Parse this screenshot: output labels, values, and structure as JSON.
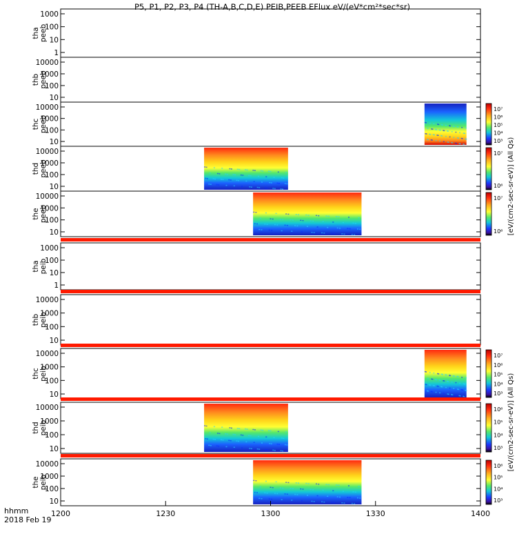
{
  "figure": {
    "title": "P5, P1, P2, P3, P4 (TH-A,B,C,D,E) PEIB,PEEB EFlux eV/(eV*cm²*sec*sr)",
    "time_label": "hhmm",
    "date_label": "2018 Feb 19",
    "x_ticks": [
      "1200",
      "1230",
      "1300",
      "1330",
      "1400"
    ],
    "colorbar_unit_electron": "[eV/(cm2-sec-sr-eV)] (All Qs)",
    "colorbar_unit_ion": "[eV/(cm2-sec-sr-eV)] (All Qs)"
  },
  "chart_data": {
    "type": "heatmap",
    "title": "P5, P1, P2, P3, P4 (TH-A,B,C,D,E) PEIB,PEEB EFlux eV/(eV*cm²*sec*sr)",
    "x_axis": {
      "label": "hhmm",
      "date": "2018 Feb 19",
      "range": [
        1200,
        1400
      ],
      "ticks": [
        "1200",
        "1230",
        "1300",
        "1330",
        "1400"
      ]
    },
    "y_scale": "log",
    "panels": [
      {
        "probe": "tha",
        "product": "peeb",
        "ylabel": [
          "tha",
          "peeb"
        ],
        "yticks": [
          "1000",
          "100",
          "10",
          "1"
        ],
        "data_interval": null
      },
      {
        "probe": "thb",
        "product": "peeb",
        "ylabel": [
          "thb",
          "peeb"
        ],
        "yticks": [
          "10000",
          "1000",
          "100",
          "10"
        ],
        "data_interval": null
      },
      {
        "probe": "thc",
        "product": "peeb",
        "ylabel": [
          "thc",
          "peeb"
        ],
        "yticks": [
          "10000",
          "1000",
          "100",
          "10"
        ],
        "data_interval": [
          "1344",
          "1356"
        ],
        "colorbar_ticks": [
          "10⁷",
          "10⁶",
          "10⁵",
          "10⁴",
          "10³"
        ]
      },
      {
        "probe": "thd",
        "product": "peeb",
        "ylabel": [
          "thd",
          "peeb"
        ],
        "yticks": [
          "10000",
          "1000",
          "100",
          "10"
        ],
        "data_interval": [
          "1241",
          "1305"
        ],
        "colorbar_ticks": [
          "10⁷",
          "10⁶"
        ]
      },
      {
        "probe": "the",
        "product": "peeb",
        "ylabel": [
          "the",
          "peeb"
        ],
        "yticks": [
          "10000",
          "1000",
          "100",
          "10"
        ],
        "data_interval": [
          "1255",
          "1326"
        ],
        "colorbar_ticks": [
          "10⁷",
          "10⁶"
        ]
      },
      {
        "probe": "tha",
        "product": "peib",
        "ylabel": [
          "tha",
          "peib"
        ],
        "yticks": [
          "1000",
          "100",
          "10",
          "1"
        ],
        "data_interval": null
      },
      {
        "probe": "thb",
        "product": "peib",
        "ylabel": [
          "thb",
          "peib"
        ],
        "yticks": [
          "10000",
          "1000",
          "100",
          "10"
        ],
        "data_interval": null
      },
      {
        "probe": "thc",
        "product": "peib",
        "ylabel": [
          "thc",
          "peib"
        ],
        "yticks": [
          "10000",
          "1000",
          "100",
          "10"
        ],
        "data_interval": [
          "1344",
          "1356"
        ],
        "colorbar_ticks": [
          "10⁷",
          "10⁶",
          "10⁵",
          "10⁴",
          "10³"
        ]
      },
      {
        "probe": "thd",
        "product": "peib",
        "ylabel": [
          "thd",
          "peib"
        ],
        "yticks": [
          "10000",
          "1000",
          "100",
          "10"
        ],
        "data_interval": [
          "1241",
          "1305"
        ],
        "colorbar_ticks": [
          "10⁶",
          "10⁵",
          "10⁴",
          "10³"
        ]
      },
      {
        "probe": "the",
        "product": "peib",
        "ylabel": [
          "the",
          "peib"
        ],
        "yticks": [
          "10000",
          "1000",
          "100",
          "10"
        ],
        "data_interval": [
          "1255",
          "1326"
        ],
        "colorbar_ticks": [
          "10⁶",
          "10⁵",
          "10⁴",
          "10³"
        ]
      }
    ]
  }
}
